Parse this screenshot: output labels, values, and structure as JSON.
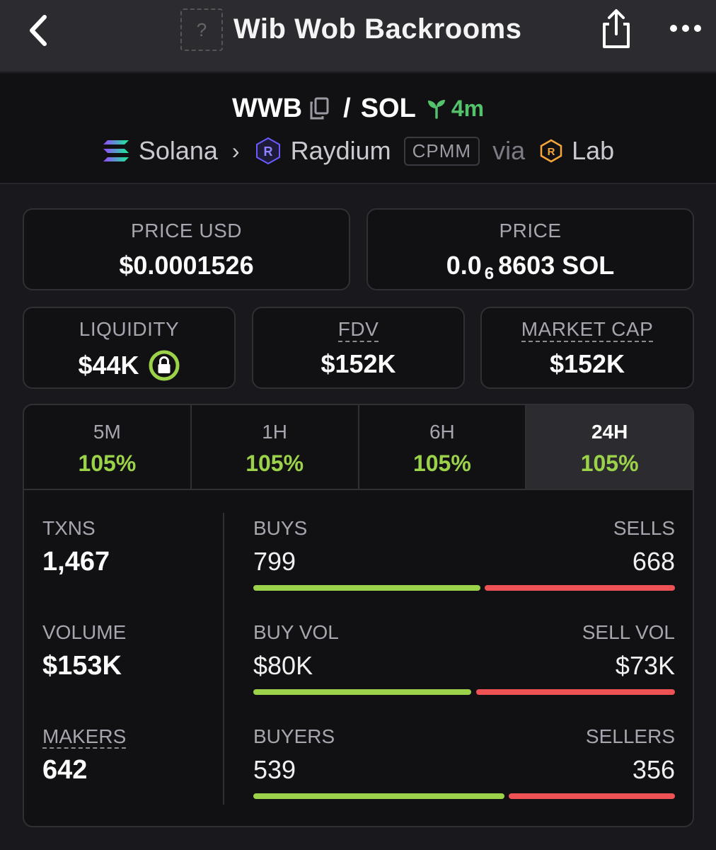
{
  "nav": {
    "title": "Wib Wob Backrooms",
    "token_placeholder": "?",
    "back_icon": "chevron-left-icon",
    "share_icon": "share-icon",
    "more_icon": "more-horizontal-icon"
  },
  "pair": {
    "base": "WWB",
    "quote": "SOL",
    "separator": "/",
    "age": "4m",
    "chain": "Solana",
    "dex": "Raydium",
    "pool_type": "CPMM",
    "via_label": "via",
    "launchpad": "Lab"
  },
  "price_usd": {
    "label": "PRICE USD",
    "value": "$0.0001526"
  },
  "price": {
    "label": "PRICE",
    "prefix": "0.0",
    "zeros": "6",
    "digits": "8603",
    "unit": "SOL"
  },
  "liquidity": {
    "label": "LIQUIDITY",
    "value": "$44K"
  },
  "fdv": {
    "label": "FDV",
    "value": "$152K"
  },
  "market_cap": {
    "label": "MARKET CAP",
    "value": "$152K"
  },
  "timeframes": [
    {
      "label": "5M",
      "change": "105%"
    },
    {
      "label": "1H",
      "change": "105%"
    },
    {
      "label": "6H",
      "change": "105%"
    },
    {
      "label": "24H",
      "change": "105%",
      "active": true
    }
  ],
  "stats": {
    "txns": {
      "label": "TXNS",
      "value": "1,467"
    },
    "volume": {
      "label": "VOLUME",
      "value": "$153K"
    },
    "makers": {
      "label": "MAKERS",
      "value": "642"
    }
  },
  "splits": {
    "txns": {
      "left_label": "BUYS",
      "right_label": "SELLS",
      "left_value": "799",
      "right_value": "668",
      "left_num": 799,
      "right_num": 668
    },
    "volume": {
      "left_label": "BUY VOL",
      "right_label": "SELL VOL",
      "left_value": "$80K",
      "right_value": "$73K",
      "left_num": 80,
      "right_num": 73
    },
    "makers": {
      "left_label": "BUYERS",
      "right_label": "SELLERS",
      "left_value": "539",
      "right_value": "356",
      "left_num": 539,
      "right_num": 356
    }
  },
  "colors": {
    "positive": "#9bd24a",
    "negative": "#ef5254",
    "age": "#53c26b",
    "lock_ring": "#9bd24a"
  }
}
